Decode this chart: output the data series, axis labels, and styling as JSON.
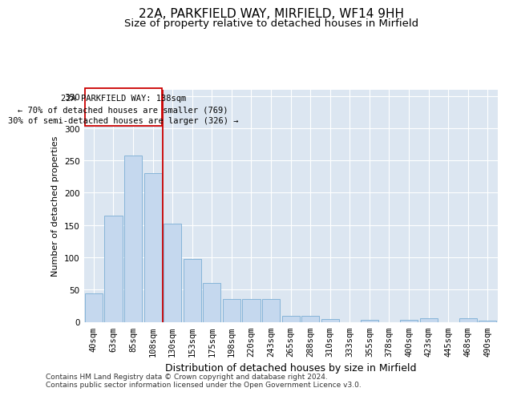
{
  "title": "22A, PARKFIELD WAY, MIRFIELD, WF14 9HH",
  "subtitle": "Size of property relative to detached houses in Mirfield",
  "xlabel": "Distribution of detached houses by size in Mirfield",
  "ylabel": "Number of detached properties",
  "categories": [
    "40sqm",
    "63sqm",
    "85sqm",
    "108sqm",
    "130sqm",
    "153sqm",
    "175sqm",
    "198sqm",
    "220sqm",
    "243sqm",
    "265sqm",
    "288sqm",
    "310sqm",
    "333sqm",
    "355sqm",
    "378sqm",
    "400sqm",
    "423sqm",
    "445sqm",
    "468sqm",
    "490sqm"
  ],
  "values": [
    44,
    165,
    257,
    230,
    152,
    98,
    60,
    35,
    35,
    35,
    9,
    9,
    4,
    0,
    3,
    0,
    3,
    5,
    0,
    5,
    2
  ],
  "bar_color": "#c5d8ee",
  "bar_edge_color": "#7aadd4",
  "vline_color": "#cc0000",
  "annotation_text": "22A PARKFIELD WAY: 138sqm\n← 70% of detached houses are smaller (769)\n30% of semi-detached houses are larger (326) →",
  "annotation_box_color": "#ffffff",
  "annotation_box_edge": "#cc0000",
  "ylim": [
    0,
    360
  ],
  "yticks": [
    0,
    50,
    100,
    150,
    200,
    250,
    300,
    350
  ],
  "bg_color": "#dce6f1",
  "footer": "Contains HM Land Registry data © Crown copyright and database right 2024.\nContains public sector information licensed under the Open Government Licence v3.0.",
  "title_fontsize": 11,
  "subtitle_fontsize": 9.5,
  "xlabel_fontsize": 9,
  "ylabel_fontsize": 8,
  "tick_fontsize": 7.5,
  "annotation_fontsize": 7.5,
  "footer_fontsize": 6.5
}
